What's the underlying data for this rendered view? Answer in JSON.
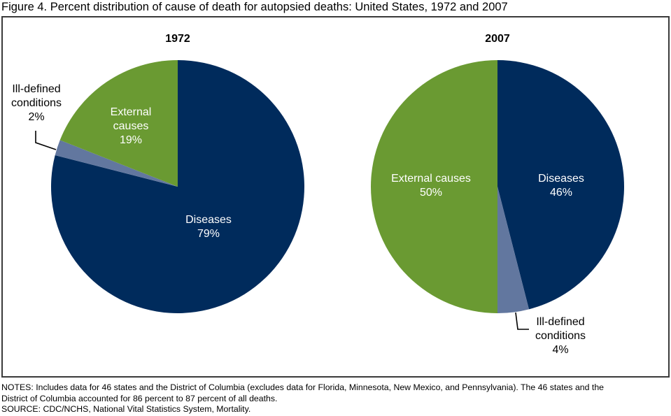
{
  "figure": {
    "title": "Figure 4. Percent distribution of cause of death for autopsied deaths: United States, 1972 and 2007",
    "notes_line1": "NOTES: Includes data for 46 states and the District of Columbia (excludes data for Florida, Minnesota, New Mexico, and Pennsylvania). The 46 states and the",
    "notes_line2": "District of Columbia accounted for 86 percent to 87 percent of all deaths.",
    "source": "SOURCE: CDC/NCHS, National Vital Statistics System, Mortality."
  },
  "colors": {
    "diseases": "#002b5c",
    "external": "#6a9a32",
    "ill_defined": "#62779f"
  },
  "pies": [
    {
      "year": "1972",
      "labels": {
        "diseases_name": "Diseases",
        "diseases_pct": "79%",
        "external_name1": "External",
        "external_name2": "causes",
        "external_pct": "19%",
        "ill_name1": "Ill-defined",
        "ill_name2": "conditions",
        "ill_pct": "2%"
      }
    },
    {
      "year": "2007",
      "labels": {
        "diseases_name": "Diseases",
        "diseases_pct": "46%",
        "external_name": "External causes",
        "external_pct": "50%",
        "ill_name1": "Ill-defined",
        "ill_name2": "conditions",
        "ill_pct": "4%"
      }
    }
  ],
  "chart_data": [
    {
      "type": "pie",
      "title": "1972",
      "categories": [
        "Diseases",
        "Ill-defined conditions",
        "External causes"
      ],
      "values": [
        79,
        2,
        19
      ],
      "unit": "percent",
      "start_angle": "12 o'clock, clockwise"
    },
    {
      "type": "pie",
      "title": "2007",
      "categories": [
        "Diseases",
        "Ill-defined conditions",
        "External causes"
      ],
      "values": [
        46,
        4,
        50
      ],
      "unit": "percent",
      "start_angle": "12 o'clock, clockwise"
    }
  ]
}
